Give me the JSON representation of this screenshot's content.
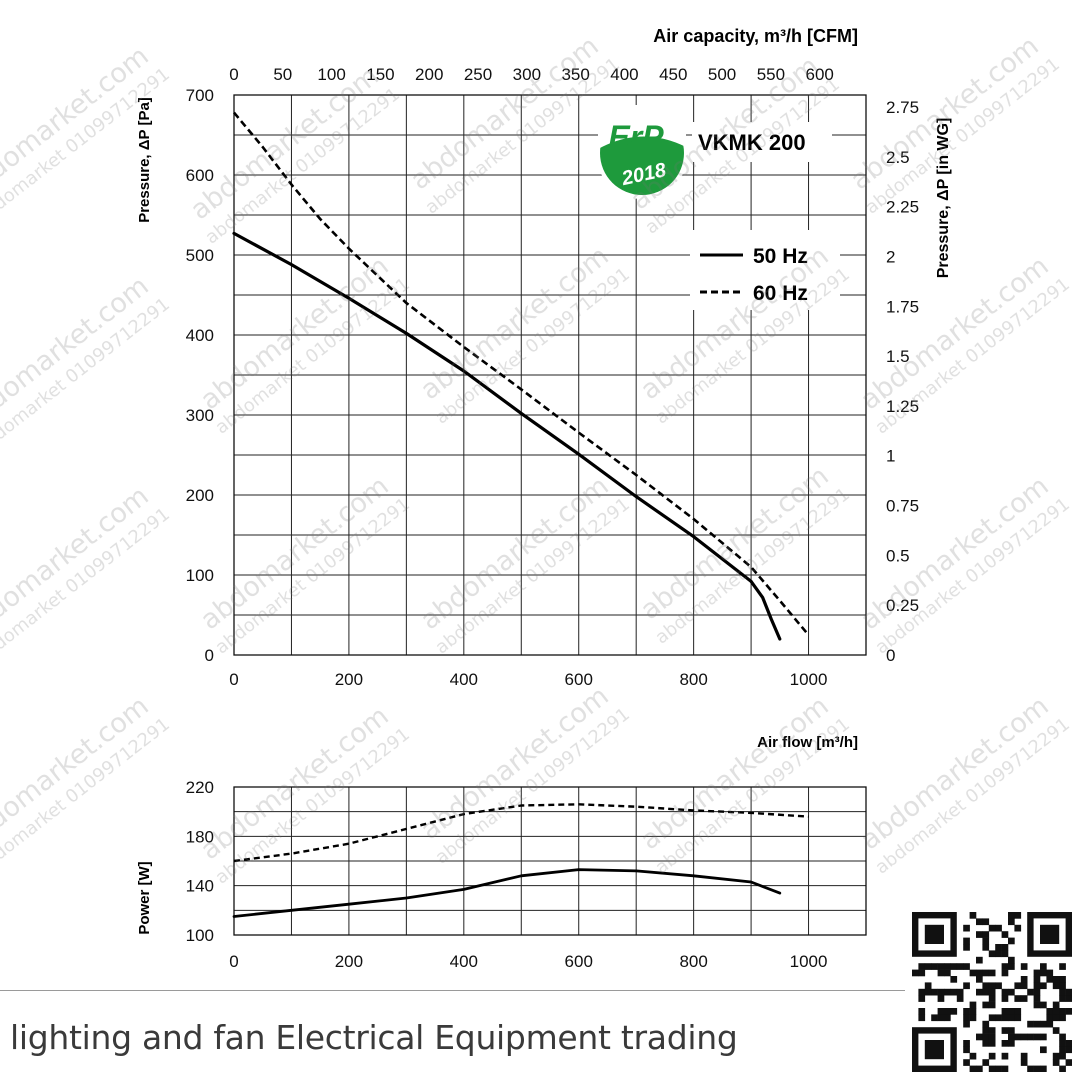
{
  "chart_data": [
    {
      "type": "line",
      "title": "VKMK 200",
      "badge": {
        "label": "ErP",
        "year": "2018",
        "color": "#1e9a3c"
      },
      "xlabel_top": "Air capacity, m³/h [CFM]",
      "ylabel_left": "Pressure, ΔP [Pa]",
      "ylabel_right": "Pressure, ΔP [in WG]",
      "x_bottom_ticks": [
        "0",
        "200",
        "400",
        "600",
        "800",
        "1000"
      ],
      "x_top_ticks": [
        "0",
        "50",
        "100",
        "150",
        "200",
        "250",
        "300",
        "350",
        "400",
        "450",
        "500",
        "550",
        "600"
      ],
      "y_left_ticks": [
        "0",
        "100",
        "200",
        "300",
        "400",
        "500",
        "600",
        "700"
      ],
      "y_right_ticks": [
        "0",
        "0.25",
        "0.5",
        "0.75",
        "1",
        "1.25",
        "1.5",
        "1.75",
        "2",
        "2.25",
        "2.5",
        "2.75"
      ],
      "xlim": [
        0,
        1100
      ],
      "ylim": [
        0,
        700
      ],
      "grid": true,
      "legend_position": "top-right",
      "series": [
        {
          "name": "50 Hz",
          "style": "solid",
          "x": [
            0,
            100,
            200,
            300,
            400,
            500,
            600,
            700,
            800,
            900,
            920,
            935,
            950
          ],
          "y": [
            527,
            488,
            446,
            402,
            355,
            302,
            251,
            198,
            148,
            92,
            72,
            45,
            20
          ]
        },
        {
          "name": "60 Hz",
          "style": "dashed",
          "x": [
            0,
            50,
            100,
            150,
            200,
            300,
            400,
            500,
            600,
            700,
            800,
            900,
            950,
            1000
          ],
          "y": [
            678,
            635,
            588,
            545,
            508,
            440,
            385,
            332,
            278,
            225,
            170,
            110,
            68,
            25
          ]
        }
      ]
    },
    {
      "type": "line",
      "xlabel": "Air flow [m³/h]",
      "ylabel": "Power [W]",
      "x_ticks": [
        "0",
        "200",
        "400",
        "600",
        "800",
        "1000"
      ],
      "y_ticks": [
        "100",
        "140",
        "180",
        "220"
      ],
      "xlim": [
        0,
        1100
      ],
      "ylim": [
        100,
        220
      ],
      "grid": true,
      "series": [
        {
          "style": "solid",
          "x": [
            0,
            100,
            200,
            300,
            400,
            500,
            600,
            700,
            800,
            900,
            950
          ],
          "y": [
            115,
            120,
            125,
            130,
            137,
            148,
            153,
            152,
            148,
            143,
            134
          ]
        },
        {
          "style": "dashed",
          "x": [
            0,
            100,
            200,
            300,
            400,
            500,
            600,
            700,
            800,
            900,
            1000
          ],
          "y": [
            160,
            166,
            174,
            186,
            198,
            205,
            206,
            204,
            201,
            199,
            196
          ]
        }
      ]
    }
  ],
  "watermark": {
    "site": "abdomarket.com",
    "brand": "abdomarket",
    "phone": "01099712291"
  },
  "footer": {
    "text": "lighting and fan Electrical Equipment trading"
  }
}
